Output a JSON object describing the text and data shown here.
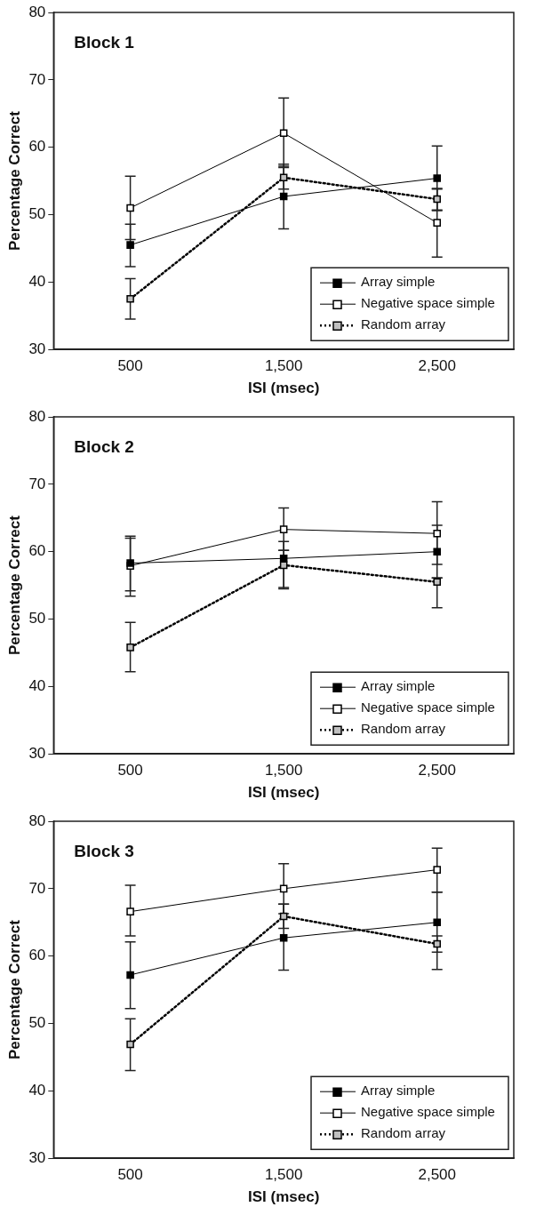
{
  "chart_data": [
    {
      "type": "line",
      "title": "Block 1",
      "xlabel": "ISI (msec)",
      "ylabel": "Percentage Correct",
      "categories": [
        "500",
        "1,500",
        "2,500"
      ],
      "ylim": [
        30,
        80
      ],
      "yticks": [
        30,
        40,
        50,
        60,
        70,
        80
      ],
      "grid": false,
      "legend": "bottom right",
      "marker": "square",
      "series": [
        {
          "name": "Array simple",
          "color": "#000000",
          "line_style": "solid",
          "values": [
            45.5,
            52.7,
            55.4
          ],
          "errors": [
            [
              42.3,
              48.6
            ],
            [
              47.9,
              57.5
            ],
            [
              50.6,
              60.2
            ]
          ]
        },
        {
          "name": "Negative space simple",
          "color": "#ffffff",
          "line_style": "solid",
          "values": [
            51.0,
            62.1,
            48.8
          ],
          "errors": [
            [
              46.3,
              55.7
            ],
            [
              57.0,
              67.3
            ],
            [
              43.7,
              53.9
            ]
          ]
        },
        {
          "name": "Random array",
          "color": "#c0c0c0",
          "line_style": "dotted",
          "values": [
            37.5,
            55.5,
            52.3
          ],
          "errors": [
            [
              34.5,
              40.5
            ],
            [
              53.8,
              57.2
            ],
            [
              50.7,
              53.8
            ]
          ]
        }
      ]
    },
    {
      "type": "line",
      "title": "Block 2",
      "xlabel": "ISI (msec)",
      "ylabel": "Percentage Correct",
      "categories": [
        "500",
        "1,500",
        "2,500"
      ],
      "ylim": [
        30,
        80
      ],
      "yticks": [
        30,
        40,
        50,
        60,
        70,
        80
      ],
      "grid": false,
      "legend": "bottom right",
      "marker": "square",
      "series": [
        {
          "name": "Array simple",
          "color": "#000000",
          "line_style": "solid",
          "values": [
            58.3,
            59.0,
            60.0
          ],
          "errors": [
            [
              53.4,
              62.3
            ],
            [
              54.7,
              61.5
            ],
            [
              56.1,
              63.9
            ]
          ]
        },
        {
          "name": "Negative space simple",
          "color": "#ffffff",
          "line_style": "solid",
          "values": [
            57.9,
            63.3,
            62.7
          ],
          "errors": [
            [
              54.2,
              62.0
            ],
            [
              60.2,
              66.5
            ],
            [
              58.1,
              67.4
            ]
          ]
        },
        {
          "name": "Random array",
          "color": "#c0c0c0",
          "line_style": "dotted",
          "values": [
            45.8,
            58.0,
            55.5
          ],
          "errors": [
            [
              42.2,
              49.5
            ],
            [
              54.5,
              60.2
            ],
            [
              51.7,
              56.1
            ]
          ]
        }
      ]
    },
    {
      "type": "line",
      "title": "Block 3",
      "xlabel": "ISI (msec)",
      "ylabel": "Percentage Correct",
      "categories": [
        "500",
        "1,500",
        "2,500"
      ],
      "ylim": [
        30,
        80
      ],
      "yticks": [
        30,
        40,
        50,
        60,
        70,
        80
      ],
      "grid": false,
      "legend": "bottom right",
      "marker": "square",
      "series": [
        {
          "name": "Array simple",
          "color": "#000000",
          "line_style": "solid",
          "values": [
            57.2,
            62.7,
            65.0
          ],
          "errors": [
            [
              52.2,
              62.1
            ],
            [
              57.9,
              67.7
            ],
            [
              58.0,
              69.5
            ]
          ]
        },
        {
          "name": "Negative space simple",
          "color": "#ffffff",
          "line_style": "solid",
          "values": [
            66.6,
            70.0,
            72.8
          ],
          "errors": [
            [
              63.0,
              70.5
            ],
            [
              66.3,
              73.7
            ],
            [
              69.5,
              76.0
            ]
          ]
        },
        {
          "name": "Random array",
          "color": "#c0c0c0",
          "line_style": "dotted",
          "values": [
            46.9,
            65.9,
            61.8
          ],
          "errors": [
            [
              43.0,
              50.7
            ],
            [
              64.1,
              67.7
            ],
            [
              60.6,
              63.0
            ]
          ]
        }
      ]
    }
  ]
}
